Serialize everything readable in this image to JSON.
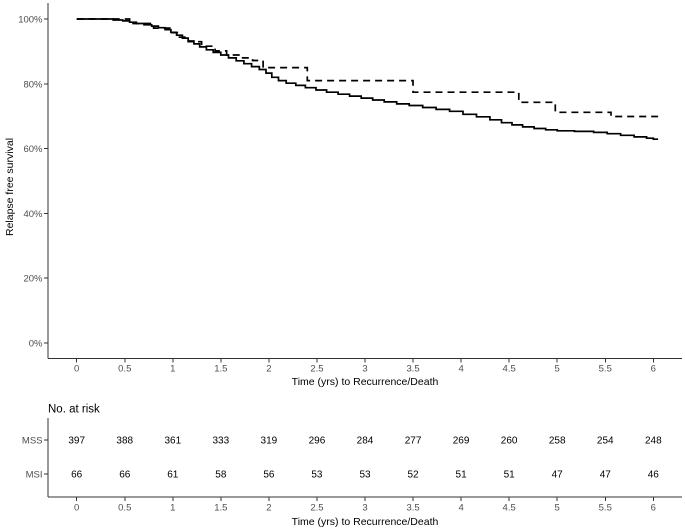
{
  "chart_data": {
    "type": "line",
    "subtype": "kaplan_meier_step",
    "title": "",
    "ylabel": "Relapse free survival",
    "xlabel": "Time (yrs) to Recurrence/Death",
    "grid": false,
    "legend_position": "none",
    "xlim": [
      -0.3,
      6.3
    ],
    "ylim_percent": [
      0,
      100
    ],
    "x_tick_values": [
      0,
      0.5,
      1,
      1.5,
      2,
      2.5,
      3,
      3.5,
      4,
      4.5,
      5,
      5.5,
      6
    ],
    "x_tick_labels": [
      "0",
      "0.5",
      "1",
      "1.5",
      "2",
      "2.5",
      "3",
      "3.5",
      "4",
      "4.5",
      "5",
      "5.5",
      "6"
    ],
    "y_tick_values": [
      0,
      20,
      40,
      60,
      80,
      100
    ],
    "y_tick_labels": [
      "0%",
      "20%",
      "40%",
      "60%",
      "80%",
      "100%"
    ],
    "x_end": 6.05,
    "series": [
      {
        "name": "MSS",
        "line_style": "solid",
        "color": "#000000",
        "steps": [
          [
            0,
            100
          ],
          [
            0.38,
            99.7
          ],
          [
            0.48,
            99.4
          ],
          [
            0.55,
            99.0
          ],
          [
            0.62,
            98.6
          ],
          [
            0.7,
            98.2
          ],
          [
            0.78,
            97.8
          ],
          [
            0.85,
            97.3
          ],
          [
            0.92,
            96.7
          ],
          [
            0.98,
            95.9
          ],
          [
            1.04,
            95.0
          ],
          [
            1.1,
            94.1
          ],
          [
            1.16,
            93.2
          ],
          [
            1.22,
            92.3
          ],
          [
            1.28,
            91.4
          ],
          [
            1.35,
            90.5
          ],
          [
            1.42,
            89.7
          ],
          [
            1.5,
            88.9
          ],
          [
            1.58,
            88.0
          ],
          [
            1.66,
            87.1
          ],
          [
            1.74,
            86.2
          ],
          [
            1.82,
            85.3
          ],
          [
            1.9,
            84.4
          ],
          [
            1.97,
            83.3
          ],
          [
            2.03,
            82.0
          ],
          [
            2.1,
            81.0
          ],
          [
            2.18,
            80.2
          ],
          [
            2.28,
            79.5
          ],
          [
            2.38,
            78.8
          ],
          [
            2.49,
            78.1
          ],
          [
            2.6,
            77.4
          ],
          [
            2.72,
            76.8
          ],
          [
            2.84,
            76.2
          ],
          [
            2.96,
            75.6
          ],
          [
            3.08,
            75.0
          ],
          [
            3.2,
            74.4
          ],
          [
            3.33,
            73.8
          ],
          [
            3.46,
            73.3
          ],
          [
            3.6,
            72.7
          ],
          [
            3.74,
            72.1
          ],
          [
            3.88,
            71.5
          ],
          [
            4.02,
            70.6
          ],
          [
            4.16,
            69.8
          ],
          [
            4.3,
            68.9
          ],
          [
            4.42,
            68.0
          ],
          [
            4.53,
            67.3
          ],
          [
            4.64,
            66.7
          ],
          [
            4.76,
            66.2
          ],
          [
            4.88,
            65.8
          ],
          [
            5.0,
            65.5
          ],
          [
            5.18,
            65.3
          ],
          [
            5.38,
            65.0
          ],
          [
            5.52,
            64.6
          ],
          [
            5.66,
            64.1
          ],
          [
            5.8,
            63.6
          ],
          [
            5.93,
            63.2
          ],
          [
            6.0,
            62.9
          ]
        ]
      },
      {
        "name": "MSI",
        "line_style": "dashed",
        "color": "#000000",
        "steps": [
          [
            0,
            100
          ],
          [
            0.55,
            98.6
          ],
          [
            0.8,
            97.2
          ],
          [
            0.97,
            95.8
          ],
          [
            1.06,
            94.4
          ],
          [
            1.16,
            93.0
          ],
          [
            1.3,
            91.6
          ],
          [
            1.44,
            90.2
          ],
          [
            1.56,
            88.9
          ],
          [
            1.7,
            88.0
          ],
          [
            1.83,
            87.2
          ],
          [
            1.94,
            85.0
          ],
          [
            2.4,
            81.0
          ],
          [
            3.5,
            77.4
          ],
          [
            4.6,
            74.3
          ],
          [
            4.98,
            71.2
          ],
          [
            5.56,
            69.9
          ]
        ]
      }
    ],
    "risk_table": {
      "title": "No. at risk",
      "xlabel": "Time (yrs) to Recurrence/Death",
      "time_points": [
        0,
        0.5,
        1,
        1.5,
        2,
        2.5,
        3,
        3.5,
        4,
        4.5,
        5,
        5.5,
        6
      ],
      "rows": [
        {
          "label": "MSS",
          "counts": [
            397,
            388,
            361,
            333,
            319,
            296,
            284,
            277,
            269,
            260,
            258,
            254,
            248
          ]
        },
        {
          "label": "MSI",
          "counts": [
            66,
            66,
            61,
            58,
            56,
            53,
            53,
            52,
            51,
            51,
            47,
            47,
            46
          ]
        }
      ]
    }
  },
  "colors": {
    "background": "#ffffff",
    "curve": "#000000",
    "axis_line": "#333333",
    "tick_label": "#4d4d4d",
    "row_label": "#4d4d4d",
    "axis_title": "#000000",
    "risk_number": "#000000"
  }
}
